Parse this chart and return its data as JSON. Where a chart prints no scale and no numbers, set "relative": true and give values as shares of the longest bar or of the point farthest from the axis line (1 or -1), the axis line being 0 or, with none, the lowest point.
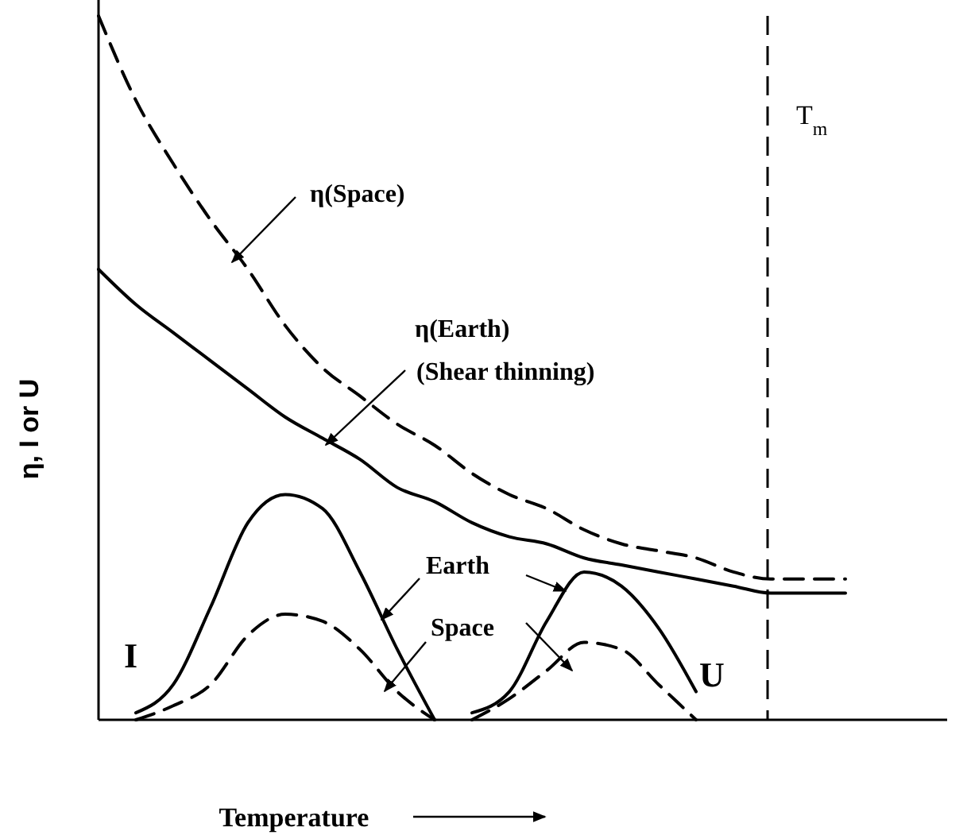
{
  "chart_data": {
    "type": "line",
    "relative": true,
    "xlabel": "Temperature",
    "ylabel": "η, I or U",
    "marker": "none",
    "grid": false,
    "categories": [
      null,
      null,
      null,
      null,
      null,
      null,
      null,
      null,
      null,
      null,
      null,
      null,
      null,
      null,
      null,
      null,
      null,
      null,
      null,
      null,
      null
    ],
    "series": [
      {
        "color": "#000000",
        "line_style": "dashed",
        "values": [
          1.0,
          0.88,
          0.79,
          0.71,
          0.64,
          0.56,
          0.5,
          0.46,
          0.42,
          0.39,
          0.35,
          0.32,
          0.3,
          0.27,
          0.25,
          0.24,
          0.23,
          0.21,
          0.2,
          0.2,
          0.2
        ]
      },
      {
        "color": "#000000",
        "line_style": "solid",
        "values": [
          0.64,
          0.59,
          0.55,
          0.51,
          0.47,
          0.43,
          0.4,
          0.37,
          0.33,
          0.31,
          0.28,
          0.26,
          0.25,
          0.23,
          0.22,
          0.21,
          0.2,
          0.19,
          0.18,
          0.18,
          0.18
        ]
      },
      {
        "color": "#000000",
        "line_style": "solid",
        "values": [
          null,
          0.01,
          0.05,
          0.16,
          0.28,
          0.32,
          0.3,
          0.21,
          0.1,
          0,
          null,
          null,
          null,
          null,
          null,
          null,
          null,
          null,
          null,
          null,
          null
        ]
      },
      {
        "color": "#000000",
        "line_style": "dashed",
        "values": [
          null,
          0,
          0.02,
          0.05,
          0.12,
          0.15,
          0.14,
          0.1,
          0.04,
          0,
          null,
          null,
          null,
          null,
          null,
          null,
          null,
          null,
          null,
          null,
          null
        ]
      },
      {
        "color": "#000000",
        "line_style": "solid",
        "values": [
          null,
          null,
          null,
          null,
          null,
          null,
          null,
          null,
          null,
          null,
          0.01,
          0.04,
          0.14,
          0.21,
          0.19,
          0.13,
          0.04,
          null,
          null,
          null,
          null
        ]
      },
      {
        "color": "#000000",
        "line_style": "dashed",
        "values": [
          null,
          null,
          null,
          null,
          null,
          null,
          null,
          null,
          null,
          null,
          0,
          0.03,
          0.07,
          0.11,
          0.1,
          0.05,
          0,
          null,
          null,
          null,
          null
        ]
      }
    ],
    "annotations": [
      "η(Space)",
      "η(Earth)",
      "(Shear thinning)",
      "Earth",
      "Space",
      "I",
      "U",
      "T$_{m}$"
    ]
  }
}
